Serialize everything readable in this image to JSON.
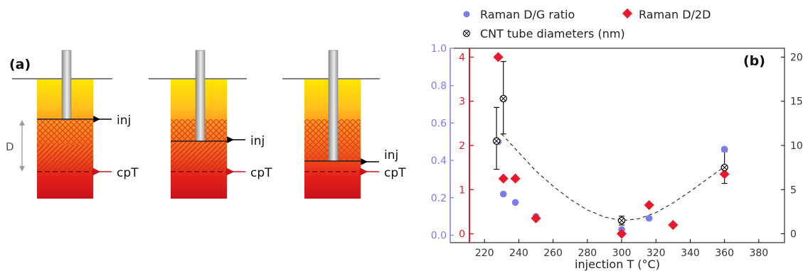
{
  "panel_a": {
    "label": "(a)",
    "dimension_label": "D",
    "injection_label": "inj",
    "critical_label": "cpT"
  },
  "chart_data": {
    "type": "scatter",
    "panel_label": "(b)",
    "xlabel": "injection T (°C)",
    "xlim": [
      200,
      395
    ],
    "xticks": [
      220,
      240,
      260,
      280,
      300,
      320,
      340,
      360,
      380
    ],
    "left_axis_blue": {
      "ylim": [
        -0.04,
        1.0
      ],
      "ticks": [
        "0.0",
        "0.2",
        "0.4",
        "0.6",
        "0.8",
        "1.0"
      ],
      "color": "#7b7bea"
    },
    "left_axis_red": {
      "ylim": [
        -0.2,
        4.2
      ],
      "ticks": [
        "0",
        "1",
        "2",
        "3",
        "4"
      ],
      "color": "#e8192c"
    },
    "right_axis": {
      "ylim": [
        -1,
        21
      ],
      "ticks": [
        "0",
        "5",
        "10",
        "15",
        "20"
      ]
    },
    "series": [
      {
        "name": "Raman D/G ratio",
        "axis": "left_blue",
        "marker": "circle",
        "color": "#7b7bea",
        "x": [
          228,
          231,
          238,
          250,
          300,
          316,
          360
        ],
        "y": [
          0.5,
          0.22,
          0.175,
          0.1,
          0.03,
          0.09,
          0.46
        ]
      },
      {
        "name": "Raman D/2D",
        "axis": "left_red",
        "marker": "diamond",
        "color": "#e8192c",
        "x": [
          228,
          231,
          238,
          250,
          300,
          316,
          330,
          360
        ],
        "y": [
          4.0,
          1.25,
          1.25,
          0.35,
          0.0,
          0.65,
          0.2,
          1.35
        ]
      },
      {
        "name": "CNT tube diameters (nm)",
        "axis": "right",
        "marker": "crossed-circle",
        "color": "#222222",
        "x": [
          227,
          231,
          300,
          360
        ],
        "y": [
          10.5,
          15.3,
          1.5,
          7.5
        ],
        "err_low": [
          3.2,
          4.0,
          0.5,
          1.8
        ],
        "err_high": [
          3.8,
          4.2,
          0.5,
          1.8
        ]
      }
    ],
    "fit_curve": {
      "style": "dashed",
      "axis": "right",
      "x": [
        230,
        240,
        250,
        260,
        270,
        280,
        290,
        300,
        310,
        320,
        330,
        340,
        350,
        360
      ],
      "y": [
        11.3,
        9.2,
        7.1,
        5.4,
        3.9,
        2.7,
        1.9,
        1.5,
        1.7,
        2.4,
        3.5,
        4.8,
        6.2,
        7.6
      ]
    }
  }
}
